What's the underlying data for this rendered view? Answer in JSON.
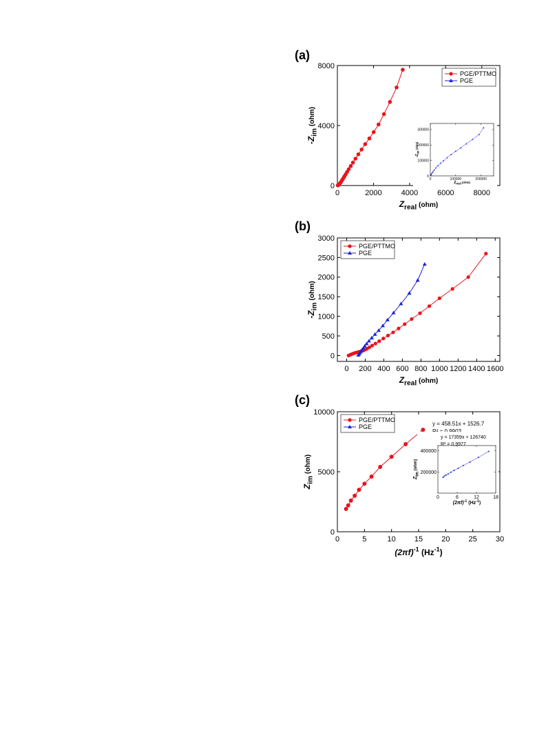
{
  "colors": {
    "red": "#e8141c",
    "blue": "#1d22d8"
  },
  "panels": {
    "a": "(a)",
    "b": "(b)",
    "c": "(c)"
  },
  "chart_data": [
    {
      "id": "a",
      "type": "scatter",
      "xlabel_main": "Z",
      "xlabel_sub": "real",
      "xlabel_unit": " (ohm)",
      "ylabel_prefix": "-Z",
      "ylabel_sub": "im",
      "ylabel_unit": " (ohm)",
      "xlim": [
        0,
        9000
      ],
      "ylim": [
        0,
        8000
      ],
      "xticks": [
        0,
        2000,
        4000,
        6000,
        8000
      ],
      "yticks": [
        0,
        4000,
        8000
      ],
      "legend": {
        "position": "top-right",
        "entries": [
          "PGE/PTTMO",
          "PGE"
        ]
      },
      "series": [
        {
          "name": "PGE/PTTMO",
          "color": "red",
          "marker": "circle",
          "x": [
            20,
            40,
            60,
            90,
            120,
            150,
            190,
            230,
            280,
            330,
            390,
            460,
            540,
            630,
            740,
            860,
            1000,
            1160,
            1340,
            1540,
            1770,
            2010,
            2280,
            2580,
            2910,
            3280,
            3620
          ],
          "y": [
            10,
            20,
            40,
            70,
            110,
            160,
            220,
            300,
            390,
            490,
            610,
            750,
            910,
            1090,
            1300,
            1530,
            1790,
            2080,
            2400,
            2760,
            3140,
            3560,
            4070,
            4760,
            5570,
            6540,
            7720
          ]
        }
      ],
      "inset": {
        "type": "line",
        "xlabel_main": "Z",
        "xlabel_sub": "real",
        "xlabel_unit": " (ohm)",
        "ylabel_prefix": "-Z",
        "ylabel_sub": "im",
        "ylabel_unit": " (ohm)",
        "xlim": [
          0,
          250000
        ],
        "ylim": [
          0,
          340000
        ],
        "xticks": [
          0,
          100000,
          200000
        ],
        "yticks": [
          0,
          100000,
          200000,
          300000
        ],
        "series": [
          {
            "name": "PGE",
            "color": "blue",
            "marker": "triangle",
            "x": [
              1000,
              3000,
              6000,
              10000,
              15000,
              22000,
              30000,
              40000,
              52000,
              66000,
              82000,
              100000,
              120000,
              142000,
              166000,
              192000,
              210000
            ],
            "y": [
              2000,
              8000,
              16000,
              26000,
              38000,
              52000,
              66000,
              82000,
              98000,
              118000,
              138000,
              160000,
              182000,
              208000,
              236000,
              268000,
              312000
            ]
          }
        ]
      }
    },
    {
      "id": "b",
      "type": "line",
      "xlabel_main": "Z",
      "xlabel_sub": "real",
      "xlabel_unit": " (ohm)",
      "ylabel_prefix": "-Z",
      "ylabel_sub": "im",
      "ylabel_unit": " (ohm)",
      "xlim": [
        -100,
        1650
      ],
      "ylim": [
        -150,
        3000
      ],
      "xticks": [
        0,
        200,
        400,
        600,
        800,
        1000,
        1200,
        1400,
        1600
      ],
      "yticks": [
        0,
        500,
        1000,
        1500,
        2000,
        2500,
        3000
      ],
      "legend": {
        "position": "top-left",
        "entries": [
          "PGE/PTTMO",
          "PGE"
        ]
      },
      "series": [
        {
          "name": "PGE/PTTMO",
          "color": "red",
          "marker": "circle",
          "x": [
            20,
            35,
            50,
            65,
            80,
            95,
            110,
            125,
            140,
            155,
            170,
            185,
            200,
            220,
            245,
            275,
            310,
            350,
            395,
            445,
            500,
            560,
            625,
            700,
            790,
            890,
            1000,
            1140,
            1310,
            1500
          ],
          "y": [
            0,
            15,
            30,
            45,
            60,
            70,
            80,
            90,
            100,
            110,
            120,
            135,
            150,
            175,
            210,
            255,
            305,
            365,
            435,
            510,
            590,
            690,
            800,
            930,
            1080,
            1260,
            1460,
            1700,
            2000,
            2600
          ]
        },
        {
          "name": "PGE",
          "color": "blue",
          "marker": "triangle",
          "x": [
            125,
            135,
            145,
            155,
            165,
            180,
            195,
            215,
            240,
            270,
            305,
            345,
            390,
            440,
            505,
            585,
            675,
            765,
            840
          ],
          "y": [
            10,
            40,
            75,
            110,
            145,
            190,
            240,
            300,
            370,
            450,
            540,
            640,
            760,
            910,
            1090,
            1320,
            1590,
            1920,
            2330
          ]
        }
      ]
    },
    {
      "id": "c",
      "type": "line",
      "xlabel": "(2πf)",
      "xlabel_exp": "-1",
      "xlabel_unit": " (Hz",
      "xlabel_unit_exp": "-1",
      "xlabel_close": ")",
      "ylabel_prefix": "Z",
      "ylabel_sub": "im",
      "ylabel_unit": " (ohm)",
      "xlim": [
        0,
        30
      ],
      "ylim": [
        0,
        10000
      ],
      "xticks": [
        0,
        5,
        10,
        15,
        20,
        25,
        30
      ],
      "yticks": [
        0,
        5000,
        10000
      ],
      "legend": {
        "position": "top-left",
        "entries": [
          "PGE/PTTMO",
          "PGE"
        ]
      },
      "annotations": [
        "y = 458.51x + 1526.7",
        "R² = 0.9903"
      ],
      "series": [
        {
          "name": "PGE/PTTMO",
          "color": "red",
          "marker": "circle",
          "x": [
            1.6,
            2.0,
            2.5,
            3.2,
            4.0,
            5.0,
            6.3,
            7.9,
            10.0,
            12.6,
            15.8
          ],
          "y": [
            1900,
            2200,
            2600,
            3000,
            3500,
            4000,
            4600,
            5400,
            6250,
            7300,
            8500
          ]
        }
      ],
      "inset": {
        "type": "line",
        "xlabel": "(2πf)",
        "xlabel_exp": "-1",
        "xlabel_unit": " (Hz",
        "xlabel_unit_exp": "-1",
        "xlabel_close": ")",
        "ylabel_prefix": "Z",
        "ylabel_sub": "im",
        "ylabel_unit": " (ohm)",
        "xlim": [
          0,
          18
        ],
        "ylim": [
          0,
          450000
        ],
        "xticks": [
          0,
          6,
          12,
          18
        ],
        "yticks": [
          200000,
          400000
        ],
        "annotations": [
          "y = 17359x + 126740",
          "R² = 0,9977"
        ],
        "series": [
          {
            "name": "PGE",
            "color": "blue",
            "marker": "triangle",
            "x": [
              1.6,
              2.0,
              2.5,
              3.2,
              4.0,
              5.0,
              6.3,
              7.9,
              10.0,
              12.6,
              15.8
            ],
            "y": [
              150000,
              162000,
              172000,
              182000,
              198000,
              215000,
              235000,
              262000,
              295000,
              338000,
              395000
            ]
          }
        ]
      }
    }
  ]
}
